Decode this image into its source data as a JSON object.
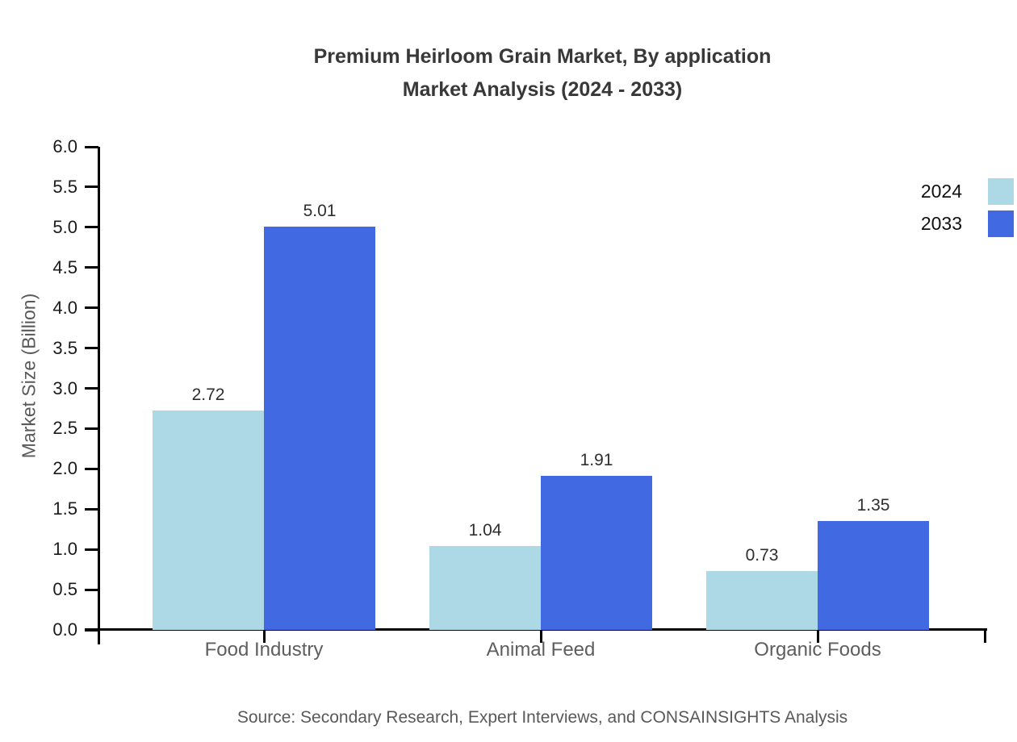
{
  "title": {
    "line1": "Premium Heirloom Grain Market, By application",
    "line2": "Market Analysis (2024 - 2033)"
  },
  "source": "Source: Secondary Research, Expert Interviews, and CONSAINSIGHTS Analysis",
  "chart_data": {
    "type": "bar",
    "title": "Premium Heirloom Grain Market, By application Market Analysis (2024 - 2033)",
    "categories": [
      "Food Industry",
      "Animal Feed",
      "Organic Foods"
    ],
    "series": [
      {
        "name": "2024",
        "color": "#ADD8E6",
        "values": [
          2.72,
          1.04,
          0.73
        ]
      },
      {
        "name": "2033",
        "color": "#4169E1",
        "values": [
          5.01,
          1.91,
          1.35
        ]
      }
    ],
    "xlabel": "",
    "ylabel": "Market Size (Billion)",
    "ylim": [
      0,
      6
    ],
    "yticks": [
      0.0,
      0.5,
      1.0,
      1.5,
      2.0,
      2.5,
      3.0,
      3.5,
      4.0,
      4.5,
      5.0,
      5.5,
      6.0
    ],
    "grid": false,
    "legend_position": "top-right",
    "value_labels_decimals": 2,
    "axis_color": "#000000"
  }
}
